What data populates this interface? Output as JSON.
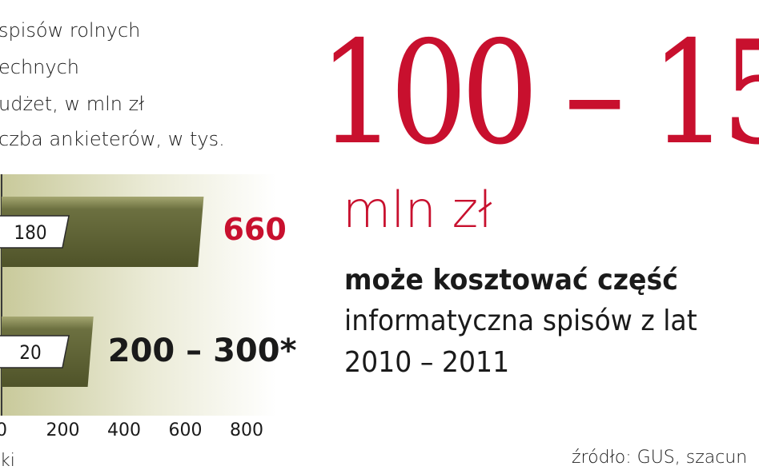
{
  "legend": {
    "line1": "spisów rolnych",
    "line2": "echnych",
    "line3": "udżet, w mln zł",
    "line4": "czba ankieterów, w tys."
  },
  "chart_data": {
    "type": "bar",
    "orientation": "horizontal",
    "xlim": [
      0,
      800
    ],
    "x_ticks": [
      "0",
      "200",
      "400",
      "600",
      "800"
    ],
    "x_tick_values": [
      0,
      200,
      400,
      600,
      800
    ],
    "bars": [
      {
        "value": 660,
        "inner_value": 180,
        "value_label": "660",
        "inner_label": "180"
      },
      {
        "value": 300,
        "inner_value": 20,
        "value_label": "200 – 300*",
        "inner_label": "20"
      }
    ],
    "colors": {
      "bar_fill": "#5d6133",
      "bar_fill_light": "#8a8d55",
      "background_gradient_start": "#c8c99a",
      "background_gradient_end": "#ffffff",
      "highlight_label": "#c8102e",
      "label": "#1a1a1a"
    }
  },
  "axis_note": "ki",
  "headline": {
    "range": "100 – 15",
    "unit": "mln zł"
  },
  "description": {
    "line1": "może kosztować część",
    "line2": "informatyczna spisów z lat",
    "line3": "2010 – 2011"
  },
  "source": "źródło: GUS, szacun"
}
